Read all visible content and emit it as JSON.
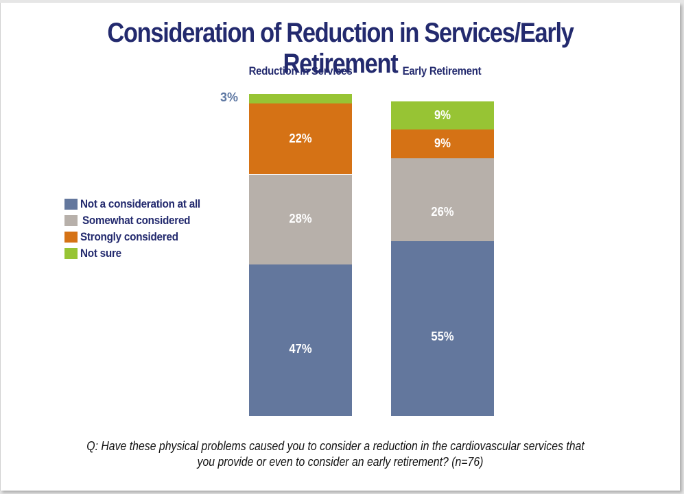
{
  "chart_data": {
    "type": "bar",
    "stacked": true,
    "title": "Consideration of Reduction in Services/Early Retirement",
    "categories": [
      "Reduction in Services",
      "Early Retirement"
    ],
    "series": [
      {
        "name": "Not a consideration at all",
        "color": "#63779d",
        "values": [
          47,
          55
        ],
        "labels": [
          "47%",
          "55%"
        ]
      },
      {
        "name": "Somewhat considered",
        "color": "#b7b0aa",
        "values": [
          28,
          26
        ],
        "labels": [
          "28%",
          "26%"
        ]
      },
      {
        "name": "Strongly considered",
        "color": "#d57215",
        "values": [
          22,
          9
        ],
        "labels": [
          "22%",
          "9%"
        ]
      },
      {
        "name": "Not sure",
        "color": "#97c434",
        "values": [
          3,
          9
        ],
        "labels": [
          "3%",
          "9%"
        ]
      }
    ],
    "ylim": [
      0,
      100
    ],
    "legend_position": "left",
    "xlabel": "",
    "ylabel": "",
    "grid": false
  },
  "question": {
    "line1": "Q:  Have these physical problems caused you to consider a reduction in the cardiovascular services that",
    "line2": "you provide or even to consider an early retirement?  (n=76)"
  }
}
